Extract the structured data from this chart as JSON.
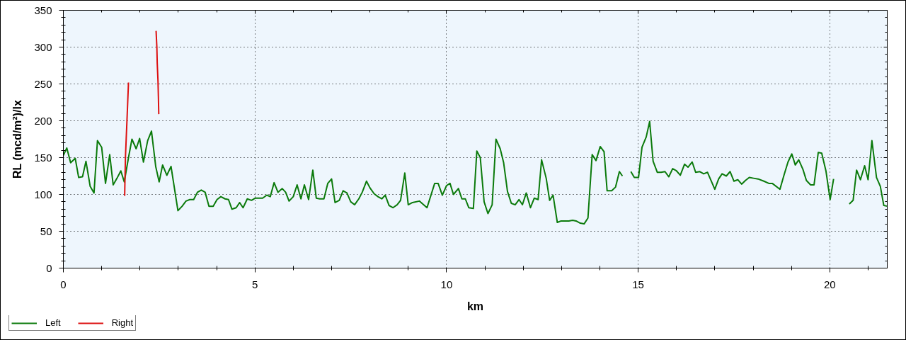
{
  "chart_data": {
    "type": "line",
    "xlabel": "km",
    "ylabel": "RL (mcd/m²)/lx",
    "xlim": [
      0,
      21.5
    ],
    "ylim": [
      0,
      350
    ],
    "xticks": [
      0,
      {
        "value": 1,
        "label": null
      },
      {
        "value": 2,
        "label": null
      },
      {
        "value": 3,
        "label": null
      },
      {
        "value": 4,
        "label": null
      },
      5,
      {
        "value": 6,
        "label": null
      },
      {
        "value": 7,
        "label": null
      },
      {
        "value": 8,
        "label": null
      },
      {
        "value": 9,
        "label": null
      },
      10,
      {
        "value": 11,
        "label": null
      },
      {
        "value": 12,
        "label": null
      },
      {
        "value": 13,
        "label": null
      },
      {
        "value": 14,
        "label": null
      },
      15,
      {
        "value": 16,
        "label": null
      },
      {
        "value": 17,
        "label": null
      },
      {
        "value": 18,
        "label": null
      },
      {
        "value": 19,
        "label": null
      },
      20,
      {
        "value": 21,
        "label": null
      }
    ],
    "yticks": [
      0,
      {
        "value": 10,
        "label": null
      },
      {
        "value": 20,
        "label": null
      },
      {
        "value": 30,
        "label": null
      },
      {
        "value": 40,
        "label": null
      },
      50,
      {
        "value": 60,
        "label": null
      },
      {
        "value": 70,
        "label": null
      },
      {
        "value": 80,
        "label": null
      },
      {
        "value": 90,
        "label": null
      },
      100,
      {
        "value": 110,
        "label": null
      },
      {
        "value": 120,
        "label": null
      },
      {
        "value": 130,
        "label": null
      },
      {
        "value": 140,
        "label": null
      },
      150,
      {
        "value": 160,
        "label": null
      },
      {
        "value": 170,
        "label": null
      },
      {
        "value": 180,
        "label": null
      },
      {
        "value": 190,
        "label": null
      },
      200,
      {
        "value": 210,
        "label": null
      },
      {
        "value": 220,
        "label": null
      },
      {
        "value": 230,
        "label": null
      },
      {
        "value": 240,
        "label": null
      },
      250,
      {
        "value": 260,
        "label": null
      },
      {
        "value": 270,
        "label": null
      },
      {
        "value": 280,
        "label": null
      },
      {
        "value": 290,
        "label": null
      },
      300,
      {
        "value": 310,
        "label": null
      },
      {
        "value": 320,
        "label": null
      },
      {
        "value": 330,
        "label": null
      },
      {
        "value": 340,
        "label": null
      },
      350
    ],
    "grid": true,
    "legend": "bottom left",
    "series": [
      {
        "name": "Left",
        "color": "#0b7a0b",
        "x": [
          0.0,
          0.09,
          0.19,
          0.31,
          0.4,
          0.5,
          0.59,
          0.7,
          0.8,
          0.89,
          1.0,
          1.1,
          1.21,
          1.3,
          1.4,
          1.5,
          1.59,
          1.7,
          1.79,
          1.9,
          1.99,
          2.09,
          2.2,
          2.3,
          2.41,
          2.5,
          2.59,
          2.7,
          2.81,
          2.99,
          3.1,
          3.2,
          3.3,
          3.4,
          3.5,
          3.6,
          3.7,
          3.8,
          3.91,
          4.01,
          4.11,
          4.22,
          4.31,
          4.4,
          4.51,
          4.6,
          4.69,
          4.8,
          4.91,
          5.01,
          5.1,
          5.2,
          5.31,
          5.4,
          5.5,
          5.6,
          5.71,
          5.8,
          5.89,
          6.0,
          6.1,
          6.2,
          6.29,
          6.4,
          6.51,
          6.6,
          6.69,
          6.8,
          6.9,
          7.0,
          7.09,
          7.2,
          7.3,
          7.4,
          7.5,
          7.6,
          7.71,
          7.8,
          7.91,
          8.0,
          8.11,
          8.21,
          8.31,
          8.4,
          8.5,
          8.6,
          8.71,
          8.8,
          8.91,
          9.0,
          9.11,
          9.29,
          9.49,
          9.69,
          9.78,
          9.89,
          10.0,
          10.09,
          10.18,
          10.31,
          10.4,
          10.49,
          10.58,
          10.7,
          10.79,
          10.88,
          10.98,
          11.08,
          11.19,
          11.29,
          11.4,
          11.49,
          11.59,
          11.69,
          11.79,
          11.89,
          11.98,
          12.08,
          12.19,
          12.29,
          12.39,
          12.48,
          12.6,
          12.69,
          12.78,
          12.89,
          12.99,
          13.1,
          13.19,
          13.29,
          13.38,
          13.49,
          13.59,
          13.69,
          13.8,
          13.9,
          14.01,
          14.11,
          14.19,
          14.31,
          14.41,
          14.51,
          14.59,
          14.7,
          14.81,
          14.9,
          15.01,
          15.1,
          15.21,
          15.3,
          15.39,
          15.5,
          15.6,
          15.7,
          15.8,
          15.9,
          16.0,
          16.1,
          16.21,
          16.3,
          16.41,
          16.5,
          16.61,
          16.71,
          16.81,
          16.91,
          17.0,
          17.1,
          17.19,
          17.3,
          17.4,
          17.5,
          17.6,
          17.7,
          17.8,
          17.9,
          18.01,
          18.13,
          18.28,
          18.41,
          18.5,
          18.7,
          18.81,
          18.91,
          19.01,
          19.1,
          19.19,
          19.3,
          19.39,
          19.5,
          19.59,
          19.7,
          19.79,
          19.9,
          20.01,
          20.1,
          20.3,
          20.51,
          20.61,
          20.7,
          20.8,
          20.91,
          21.0,
          21.1,
          21.22,
          21.32,
          21.41,
          21.5
        ],
        "values": [
          153,
          163,
          143,
          149,
          123,
          124,
          145,
          111,
          102,
          173,
          164,
          115,
          154,
          113,
          122,
          132,
          117,
          150,
          175,
          162,
          176,
          144,
          173,
          186,
          138,
          117,
          140,
          126,
          138,
          78,
          84,
          91,
          93,
          93,
          103,
          106,
          103,
          84,
          84,
          93,
          97,
          94,
          93,
          80,
          82,
          89,
          82,
          94,
          92,
          95,
          95,
          95,
          99,
          97,
          116,
          103,
          108,
          103,
          91,
          97,
          113,
          94,
          113,
          93,
          133,
          95,
          94,
          94,
          115,
          121,
          89,
          92,
          105,
          102,
          90,
          86,
          94,
          103,
          118,
          109,
          101,
          97,
          94,
          99,
          85,
          82,
          86,
          92,
          129,
          86,
          89,
          91,
          82,
          115,
          115,
          99,
          112,
          115,
          100,
          108,
          94,
          94,
          82,
          81,
          159,
          150,
          90,
          74,
          86,
          175,
          162,
          143,
          104,
          88,
          86,
          93,
          86,
          102,
          82,
          95,
          93,
          147,
          122,
          92,
          99,
          62,
          64,
          64,
          64,
          65,
          64,
          61,
          60,
          68,
          154,
          146,
          165,
          158,
          105,
          105,
          110,
          131,
          125,
          null,
          131,
          123,
          123,
          164,
          178,
          199,
          145,
          130,
          130,
          131,
          124,
          135,
          132,
          126,
          141,
          137,
          144,
          130,
          131,
          128,
          130,
          118,
          107,
          121,
          128,
          125,
          131,
          118,
          120,
          114,
          119,
          123,
          122,
          121,
          118,
          115,
          115,
          107,
          127,
          144,
          155,
          140,
          147,
          134,
          119,
          113,
          113,
          157,
          156,
          132,
          93,
          121,
          null,
          87,
          92,
          133,
          120,
          139,
          120,
          173,
          123,
          111,
          85,
          84
        ]
      },
      {
        "name": "Right",
        "color": "#dd1111",
        "x": [
          1.6,
          1.61,
          1.62,
          1.64,
          1.66,
          1.68,
          1.7,
          2.0,
          2.42,
          2.44,
          2.45,
          2.47,
          2.48,
          2.49
        ],
        "values": [
          98,
          125,
          150,
          175,
          200,
          226,
          252,
          null,
          322,
          300,
          278,
          254,
          233,
          209
        ]
      }
    ]
  }
}
